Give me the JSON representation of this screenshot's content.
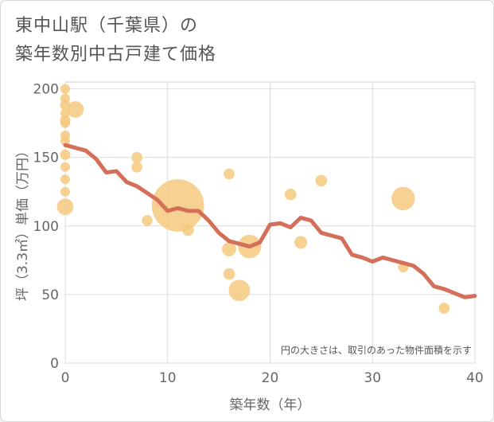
{
  "title": {
    "line1": "東中山駅（千葉県）の",
    "line2": "築年数別中古戸建て価格"
  },
  "chart_data": {
    "type": "scatter+line",
    "xlabel": "築年数（年）",
    "ylabel": "坪（3.3㎡）単価（万円）",
    "xlim": [
      0,
      40
    ],
    "ylim": [
      0,
      205
    ],
    "x_ticks": [
      0,
      10,
      20,
      30,
      40
    ],
    "y_ticks": [
      0,
      50,
      100,
      150,
      200
    ],
    "grid": true,
    "note": "円の大きさは、取引のあった物件面積を示す",
    "colors": {
      "bubble": "#f5c97f",
      "line": "#d4705a",
      "axis_text": "#666666"
    },
    "bubbles": [
      {
        "x": 0,
        "y": 200,
        "size": 1
      },
      {
        "x": 0,
        "y": 193,
        "size": 1
      },
      {
        "x": 0,
        "y": 188,
        "size": 1.2
      },
      {
        "x": 0,
        "y": 182,
        "size": 1
      },
      {
        "x": 0,
        "y": 177,
        "size": 1.2
      },
      {
        "x": 0,
        "y": 175,
        "size": 1
      },
      {
        "x": 0,
        "y": 166,
        "size": 1
      },
      {
        "x": 0,
        "y": 162,
        "size": 1
      },
      {
        "x": 0,
        "y": 152,
        "size": 1.2
      },
      {
        "x": 0,
        "y": 143,
        "size": 1
      },
      {
        "x": 0,
        "y": 134,
        "size": 1
      },
      {
        "x": 0,
        "y": 125,
        "size": 1
      },
      {
        "x": 0,
        "y": 114,
        "size": 3
      },
      {
        "x": 1,
        "y": 185,
        "size": 3
      },
      {
        "x": 7,
        "y": 150,
        "size": 1.3
      },
      {
        "x": 7,
        "y": 143,
        "size": 1.3
      },
      {
        "x": 8,
        "y": 104,
        "size": 1.3
      },
      {
        "x": 11,
        "y": 115,
        "size": 30
      },
      {
        "x": 12,
        "y": 97,
        "size": 1.5
      },
      {
        "x": 16,
        "y": 138,
        "size": 1.3
      },
      {
        "x": 16,
        "y": 83,
        "size": 2.2
      },
      {
        "x": 16,
        "y": 65,
        "size": 1.5
      },
      {
        "x": 17,
        "y": 53,
        "size": 5
      },
      {
        "x": 18,
        "y": 85,
        "size": 6
      },
      {
        "x": 22,
        "y": 123,
        "size": 1.5
      },
      {
        "x": 23,
        "y": 88,
        "size": 1.8
      },
      {
        "x": 25,
        "y": 133,
        "size": 1.5
      },
      {
        "x": 33,
        "y": 120,
        "size": 6
      },
      {
        "x": 33,
        "y": 70,
        "size": 1.2
      },
      {
        "x": 37,
        "y": 40,
        "size": 1.3
      }
    ],
    "trend": {
      "x": [
        0,
        1,
        2,
        3,
        4,
        5,
        6,
        7,
        8,
        9,
        10,
        11,
        12,
        13,
        14,
        15,
        16,
        17,
        18,
        19,
        20,
        21,
        22,
        23,
        24,
        25,
        26,
        27,
        28,
        29,
        30,
        31,
        32,
        33,
        34,
        35,
        36,
        37,
        38,
        39,
        40
      ],
      "y": [
        159,
        157,
        155,
        149,
        139,
        140,
        132,
        129,
        124,
        119,
        111,
        113,
        111,
        111,
        104,
        95,
        89,
        87,
        85,
        88,
        101,
        102,
        99,
        106,
        104,
        95,
        93,
        91,
        79,
        77,
        74,
        77,
        75,
        73,
        71,
        65,
        56,
        54,
        51,
        48,
        49
      ]
    }
  }
}
